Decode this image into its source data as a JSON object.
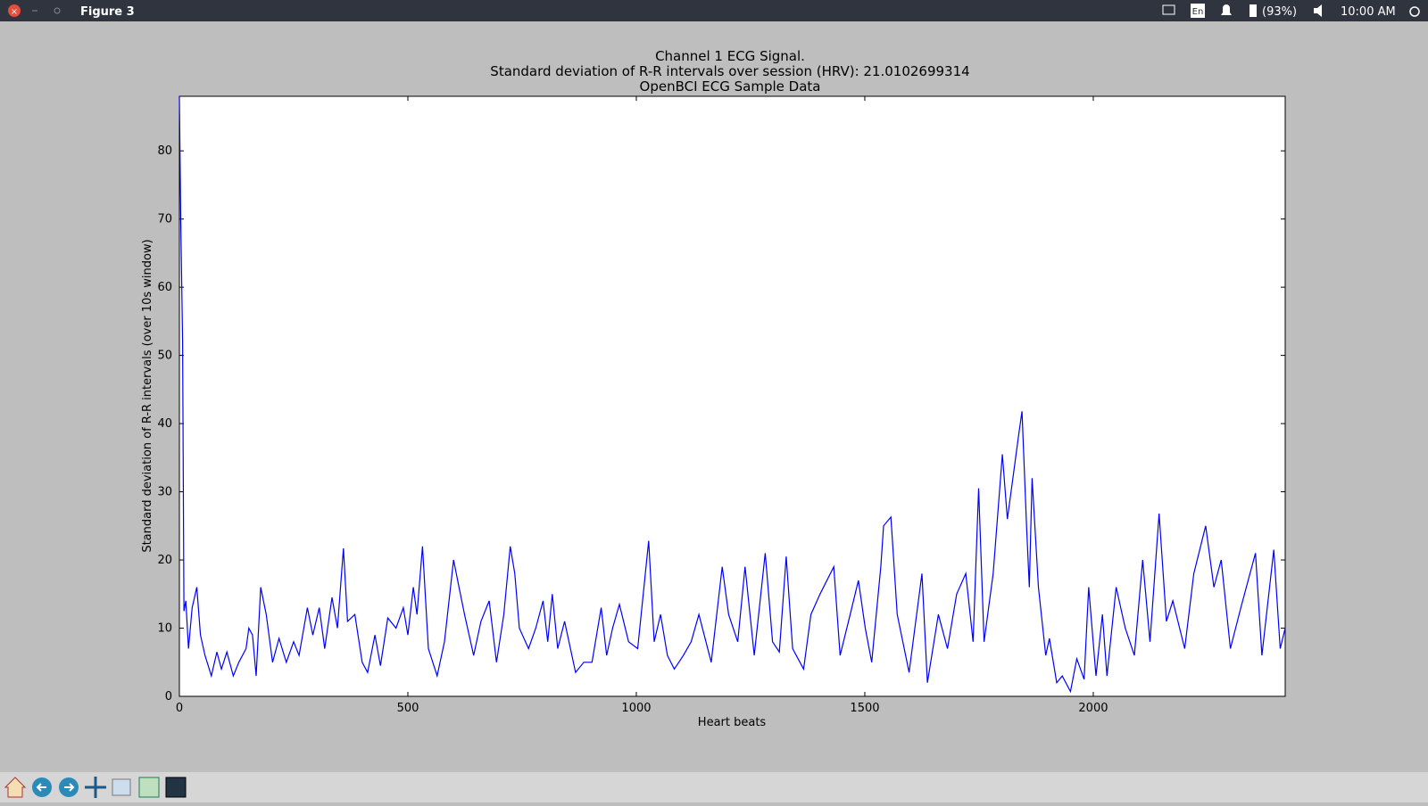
{
  "window": {
    "title": "Figure 3",
    "keyboard": "En",
    "battery": "(93%)",
    "clock": "10:00 AM"
  },
  "chart_data": {
    "type": "line",
    "title": "Channel 1 ECG Signal.",
    "subtitle": "Standard deviation of R-R intervals over session (HRV): 21.0102699314",
    "subtitle2": "OpenBCI ECG Sample Data",
    "x_label": "Heart beats",
    "y_label": "Standard deviation of R-R intervals (over 10s window)",
    "xlim": [
      0,
      2420
    ],
    "ylim": [
      0,
      88
    ],
    "xticks": [
      0,
      500,
      1000,
      1500,
      2000
    ],
    "yticks": [
      0,
      10,
      20,
      30,
      40,
      50,
      60,
      70,
      80
    ],
    "grid": false,
    "series": [
      {
        "color": "#0000ff",
        "x": [
          0,
          3,
          7,
          10,
          14,
          20,
          28,
          38,
          46,
          56,
          70,
          82,
          92,
          104,
          118,
          130,
          146,
          152,
          160,
          168,
          178,
          190,
          204,
          218,
          234,
          250,
          262,
          280,
          292,
          306,
          318,
          334,
          346,
          359,
          368,
          384,
          400,
          412,
          428,
          440,
          456,
          474,
          490,
          500,
          512,
          520,
          532,
          545,
          564,
          580,
          600,
          612,
          624,
          644,
          660,
          678,
          694,
          710,
          724,
          734,
          744,
          764,
          780,
          796,
          806,
          816,
          828,
          843,
          867,
          885,
          903,
          923,
          935,
          948,
          963,
          983,
          1003,
          1027,
          1039,
          1053,
          1068,
          1083,
          1103,
          1120,
          1137,
          1164,
          1188,
          1202,
          1222,
          1238,
          1258,
          1282,
          1298,
          1313,
          1328,
          1342,
          1366,
          1382,
          1402,
          1432,
          1446,
          1468,
          1486,
          1501,
          1515,
          1535,
          1541,
          1557,
          1571,
          1597,
          1625,
          1637,
          1661,
          1681,
          1701,
          1721,
          1737,
          1749,
          1761,
          1781,
          1801,
          1812,
          1824,
          1836,
          1844,
          1854,
          1860,
          1866,
          1880,
          1896,
          1904,
          1920,
          1932,
          1950,
          1964,
          1980,
          1990,
          2006,
          2020,
          2030,
          2050,
          2070,
          2090,
          2108,
          2124,
          2144,
          2160,
          2174,
          2200,
          2220,
          2246,
          2264,
          2280,
          2300,
          2323,
          2355,
          2369,
          2395,
          2409,
          2420
        ],
        "values": [
          88,
          70,
          52,
          12.5,
          14,
          7,
          13,
          16,
          9,
          6,
          3,
          6.5,
          4,
          6.5,
          3,
          5,
          7,
          10,
          9,
          3,
          16,
          12,
          5,
          8.5,
          5,
          8,
          6,
          13,
          9,
          13,
          7,
          14.5,
          10,
          21.7,
          11,
          12,
          5,
          3.5,
          9,
          4.5,
          11.5,
          10,
          13,
          9,
          16,
          12,
          22,
          7,
          3,
          8,
          20,
          16,
          12,
          6,
          11,
          14,
          5,
          12,
          22,
          18,
          10,
          7,
          10,
          14,
          8,
          15,
          7,
          11,
          3.5,
          5,
          5,
          13,
          6,
          10,
          13.5,
          8,
          7,
          22.8,
          8,
          12,
          6,
          4,
          6,
          8,
          12,
          5,
          19,
          12,
          8,
          19,
          6,
          21,
          8,
          6.5,
          20.5,
          7,
          4,
          12,
          15,
          19,
          6,
          12,
          17,
          10,
          5,
          19,
          25,
          26.3,
          12,
          3.5,
          18,
          2,
          12,
          7,
          15,
          18,
          8,
          30.5,
          8,
          18,
          35.5,
          26,
          32,
          38,
          41.8,
          25,
          16,
          32,
          16,
          6,
          8.5,
          2,
          3,
          0.7,
          5.5,
          2.5,
          16,
          3,
          12,
          3,
          16,
          10,
          6,
          20,
          8,
          26.8,
          11,
          14,
          7,
          18,
          25,
          16,
          20,
          7,
          13,
          21,
          6,
          21.5,
          7,
          10
        ]
      }
    ]
  }
}
